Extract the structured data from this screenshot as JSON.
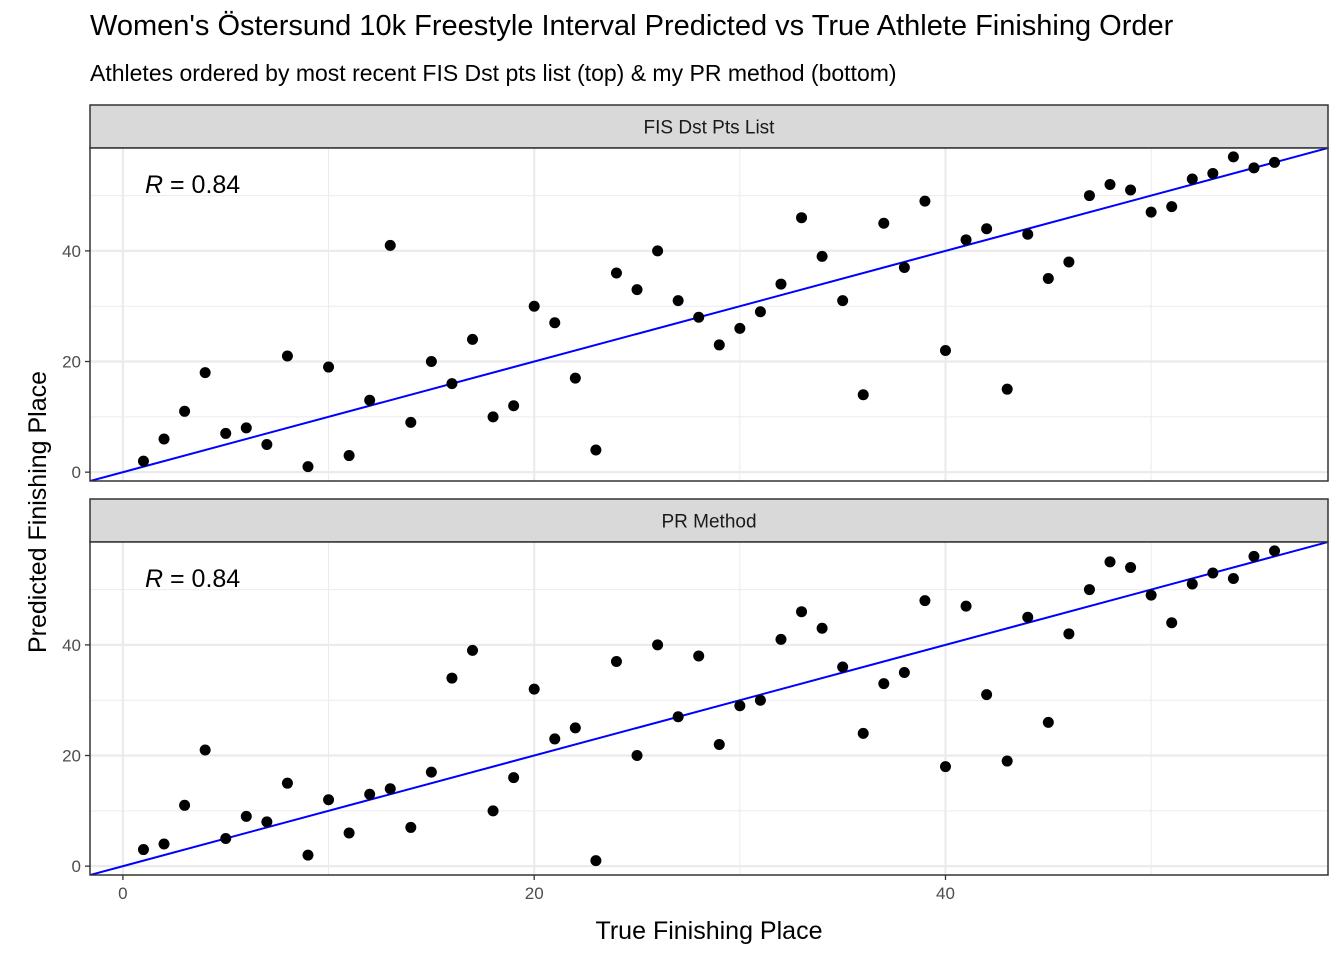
{
  "title": "Women's Östersund 10k Freestyle Interval Predicted vs True Athlete Finishing Order",
  "subtitle": "Athletes ordered by most recent FIS Dst pts list (top) & my PR method (bottom)",
  "colors": {
    "point": "#000000",
    "fit_line": "#0000ff",
    "strip_fill": "#d9d9d9",
    "panel_border": "#333333",
    "grid_major": "#ebebeb"
  },
  "chart_data": [
    {
      "type": "scatter",
      "panel": "FIS Dst Pts List",
      "annotation": {
        "prefix": "R",
        "text": " = 0.84"
      },
      "xlabel": "True Finishing Place",
      "ylabel": "Predicted Finishing Place",
      "xlim": [
        -1.6,
        58.6
      ],
      "ylim": [
        -1.6,
        58.6
      ],
      "xticks": [
        0,
        20,
        40
      ],
      "yticks": [
        0,
        20,
        40
      ],
      "grid": true,
      "fit_line": {
        "intercept": 0,
        "slope": 1
      },
      "x": [
        1,
        2,
        3,
        4,
        5,
        6,
        7,
        8,
        9,
        10,
        11,
        12,
        13,
        14,
        15,
        16,
        17,
        18,
        19,
        20,
        21,
        22,
        23,
        24,
        25,
        26,
        27,
        28,
        29,
        30,
        31,
        32,
        33,
        34,
        35,
        36,
        37,
        38,
        39,
        40,
        41,
        42,
        43,
        44,
        45,
        46,
        47,
        48,
        49,
        50,
        51,
        52,
        53,
        54,
        55,
        56
      ],
      "y": [
        2,
        6,
        11,
        18,
        7,
        8,
        5,
        21,
        1,
        19,
        3,
        13,
        41,
        9,
        20,
        16,
        24,
        10,
        12,
        30,
        27,
        17,
        4,
        36,
        33,
        40,
        31,
        28,
        23,
        26,
        29,
        34,
        46,
        39,
        31,
        14,
        45,
        37,
        49,
        22,
        42,
        44,
        15,
        43,
        35,
        38,
        50,
        52,
        51,
        47,
        48,
        53,
        54,
        57,
        55,
        56
      ]
    },
    {
      "type": "scatter",
      "panel": "PR Method",
      "annotation": {
        "prefix": "R",
        "text": " = 0.84"
      },
      "xlabel": "True Finishing Place",
      "ylabel": "Predicted Finishing Place",
      "xlim": [
        -1.6,
        58.6
      ],
      "ylim": [
        -1.6,
        58.6
      ],
      "xticks": [
        0,
        20,
        40
      ],
      "yticks": [
        0,
        20,
        40
      ],
      "grid": true,
      "fit_line": {
        "intercept": 0,
        "slope": 1
      },
      "x": [
        1,
        2,
        3,
        4,
        5,
        6,
        7,
        8,
        9,
        10,
        11,
        12,
        13,
        14,
        15,
        16,
        17,
        18,
        19,
        20,
        21,
        22,
        23,
        24,
        25,
        26,
        27,
        28,
        29,
        30,
        31,
        32,
        33,
        34,
        35,
        36,
        37,
        38,
        39,
        40,
        41,
        42,
        43,
        44,
        45,
        46,
        47,
        48,
        49,
        50,
        51,
        52,
        53,
        54,
        55,
        56
      ],
      "y": [
        3,
        4,
        11,
        21,
        5,
        9,
        8,
        15,
        2,
        12,
        6,
        13,
        14,
        7,
        17,
        34,
        39,
        10,
        16,
        32,
        23,
        25,
        1,
        37,
        20,
        40,
        27,
        38,
        22,
        29,
        30,
        41,
        46,
        43,
        36,
        24,
        33,
        35,
        48,
        18,
        47,
        31,
        19,
        45,
        26,
        42,
        50,
        55,
        54,
        49,
        44,
        51,
        53,
        52,
        56,
        57
      ]
    }
  ]
}
